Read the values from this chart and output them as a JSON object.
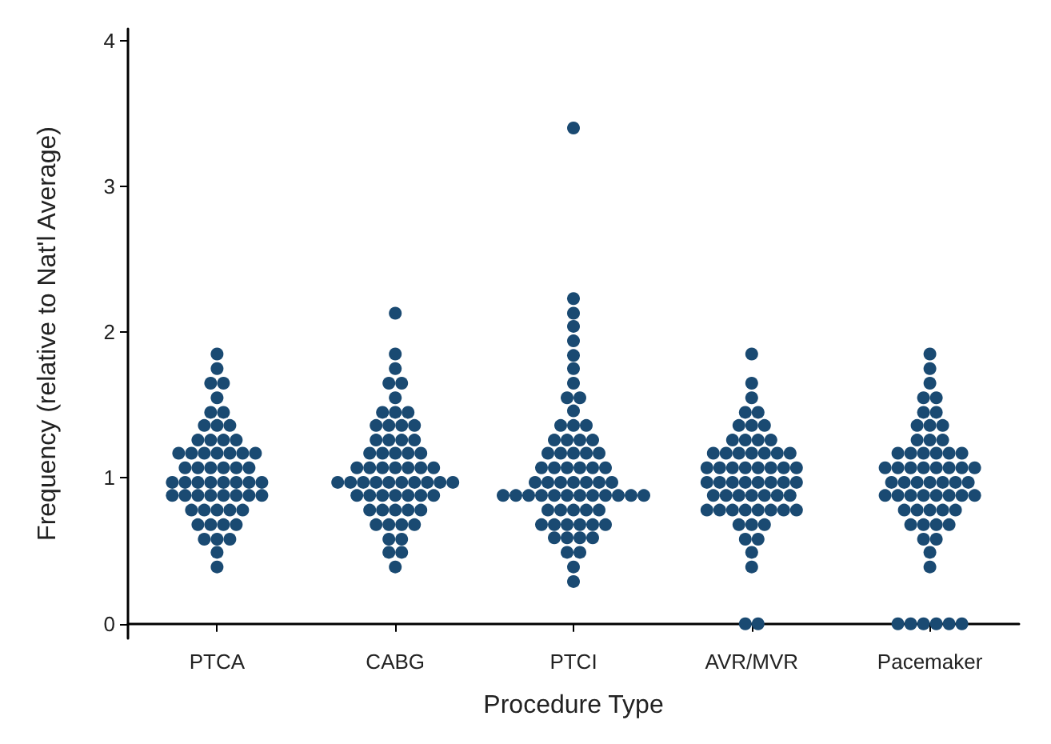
{
  "chart_data": {
    "type": "scatter",
    "xlabel": "Procedure Type",
    "ylabel": "Frequency (relative to Nat'l Average)",
    "categories": [
      "PTCA",
      "CABG",
      "PTCI",
      "AVR/MVR",
      "Pacemaker"
    ],
    "ylim": [
      -0.1,
      4.08
    ],
    "yticks": [
      0,
      1,
      2,
      3,
      4
    ],
    "grid": false,
    "marker": "circle",
    "series": [
      {
        "color": "#1a4a72",
        "x": [
          "PTCA",
          "PTCA",
          "PTCA",
          "PTCA",
          "PTCA",
          "PTCA",
          "PTCA",
          "PTCA",
          "PTCA",
          "PTCA",
          "PTCA",
          "PTCA",
          "PTCA",
          "PTCA",
          "PTCA",
          "PTCA",
          "PTCA",
          "PTCA",
          "PTCA",
          "PTCA",
          "PTCA",
          "PTCA",
          "PTCA",
          "PTCA",
          "PTCA",
          "PTCA",
          "PTCA",
          "PTCA",
          "PTCA",
          "PTCA",
          "PTCA",
          "PTCA",
          "PTCA",
          "PTCA",
          "PTCA",
          "PTCA",
          "PTCA",
          "PTCA",
          "PTCA",
          "PTCA",
          "PTCA",
          "PTCA",
          "PTCA",
          "PTCA",
          "PTCA",
          "PTCA",
          "PTCA",
          "PTCA",
          "PTCA",
          "PTCA",
          "PTCA",
          "PTCA",
          "PTCA",
          "PTCA",
          "PTCA",
          "PTCA",
          "PTCA"
        ],
        "values": [
          1.85,
          1.75,
          1.65,
          1.65,
          1.55,
          1.45,
          1.45,
          1.36,
          1.36,
          1.36,
          1.26,
          1.26,
          1.26,
          1.26,
          1.17,
          1.17,
          1.17,
          1.17,
          1.17,
          1.17,
          1.17,
          1.07,
          1.07,
          1.07,
          1.07,
          1.07,
          1.07,
          0.97,
          0.97,
          0.97,
          0.97,
          0.97,
          0.97,
          0.97,
          0.97,
          0.88,
          0.88,
          0.88,
          0.88,
          0.88,
          0.88,
          0.88,
          0.88,
          0.78,
          0.78,
          0.78,
          0.78,
          0.78,
          0.68,
          0.68,
          0.68,
          0.68,
          0.58,
          0.58,
          0.58,
          0.49,
          0.39
        ]
      },
      {
        "color": "#1a4a72",
        "x": [
          "CABG",
          "CABG",
          "CABG",
          "CABG",
          "CABG",
          "CABG",
          "CABG",
          "CABG",
          "CABG",
          "CABG",
          "CABG",
          "CABG",
          "CABG",
          "CABG",
          "CABG",
          "CABG",
          "CABG",
          "CABG",
          "CABG",
          "CABG",
          "CABG",
          "CABG",
          "CABG",
          "CABG",
          "CABG",
          "CABG",
          "CABG",
          "CABG",
          "CABG",
          "CABG",
          "CABG",
          "CABG",
          "CABG",
          "CABG",
          "CABG",
          "CABG",
          "CABG",
          "CABG",
          "CABG",
          "CABG",
          "CABG",
          "CABG",
          "CABG",
          "CABG",
          "CABG",
          "CABG",
          "CABG",
          "CABG",
          "CABG",
          "CABG",
          "CABG",
          "CABG",
          "CABG",
          "CABG",
          "CABG",
          "CABG",
          "CABG",
          "CABG",
          "CABG",
          "CABG"
        ],
        "values": [
          2.13,
          1.85,
          1.75,
          1.65,
          1.65,
          1.55,
          1.45,
          1.45,
          1.45,
          1.36,
          1.36,
          1.36,
          1.36,
          1.26,
          1.26,
          1.26,
          1.26,
          1.17,
          1.17,
          1.17,
          1.17,
          1.17,
          1.07,
          1.07,
          1.07,
          1.07,
          1.07,
          1.07,
          1.07,
          0.97,
          0.97,
          0.97,
          0.97,
          0.97,
          0.97,
          0.97,
          0.97,
          0.97,
          0.97,
          0.88,
          0.88,
          0.88,
          0.88,
          0.88,
          0.88,
          0.88,
          0.78,
          0.78,
          0.78,
          0.78,
          0.78,
          0.68,
          0.68,
          0.68,
          0.68,
          0.58,
          0.58,
          0.49,
          0.49,
          0.39
        ]
      },
      {
        "color": "#1a4a72",
        "x": [
          "PTCI",
          "PTCI",
          "PTCI",
          "PTCI",
          "PTCI",
          "PTCI",
          "PTCI",
          "PTCI",
          "PTCI",
          "PTCI",
          "PTCI",
          "PTCI",
          "PTCI",
          "PTCI",
          "PTCI",
          "PTCI",
          "PTCI",
          "PTCI",
          "PTCI",
          "PTCI",
          "PTCI",
          "PTCI",
          "PTCI",
          "PTCI",
          "PTCI",
          "PTCI",
          "PTCI",
          "PTCI",
          "PTCI",
          "PTCI",
          "PTCI",
          "PTCI",
          "PTCI",
          "PTCI",
          "PTCI",
          "PTCI",
          "PTCI",
          "PTCI",
          "PTCI",
          "PTCI",
          "PTCI",
          "PTCI",
          "PTCI",
          "PTCI",
          "PTCI",
          "PTCI",
          "PTCI",
          "PTCI",
          "PTCI",
          "PTCI",
          "PTCI",
          "PTCI",
          "PTCI",
          "PTCI",
          "PTCI",
          "PTCI",
          "PTCI",
          "PTCI",
          "PTCI",
          "PTCI",
          "PTCI",
          "PTCI",
          "PTCI",
          "PTCI",
          "PTCI",
          "PTCI",
          "PTCI"
        ],
        "values": [
          3.4,
          2.23,
          2.13,
          2.04,
          1.94,
          1.84,
          1.75,
          1.65,
          1.55,
          1.55,
          1.46,
          1.36,
          1.36,
          1.36,
          1.26,
          1.26,
          1.26,
          1.26,
          1.17,
          1.17,
          1.17,
          1.17,
          1.17,
          1.07,
          1.07,
          1.07,
          1.07,
          1.07,
          1.07,
          0.97,
          0.97,
          0.97,
          0.97,
          0.97,
          0.97,
          0.97,
          0.88,
          0.88,
          0.88,
          0.88,
          0.88,
          0.88,
          0.88,
          0.88,
          0.88,
          0.88,
          0.88,
          0.88,
          0.78,
          0.78,
          0.78,
          0.78,
          0.78,
          0.68,
          0.68,
          0.68,
          0.68,
          0.68,
          0.68,
          0.59,
          0.59,
          0.59,
          0.59,
          0.49,
          0.49,
          0.39,
          0.29
        ]
      },
      {
        "color": "#1a4a72",
        "x": [
          "AVR/MVR",
          "AVR/MVR",
          "AVR/MVR",
          "AVR/MVR",
          "AVR/MVR",
          "AVR/MVR",
          "AVR/MVR",
          "AVR/MVR",
          "AVR/MVR",
          "AVR/MVR",
          "AVR/MVR",
          "AVR/MVR",
          "AVR/MVR",
          "AVR/MVR",
          "AVR/MVR",
          "AVR/MVR",
          "AVR/MVR",
          "AVR/MVR",
          "AVR/MVR",
          "AVR/MVR",
          "AVR/MVR",
          "AVR/MVR",
          "AVR/MVR",
          "AVR/MVR",
          "AVR/MVR",
          "AVR/MVR",
          "AVR/MVR",
          "AVR/MVR",
          "AVR/MVR",
          "AVR/MVR",
          "AVR/MVR",
          "AVR/MVR",
          "AVR/MVR",
          "AVR/MVR",
          "AVR/MVR",
          "AVR/MVR",
          "AVR/MVR",
          "AVR/MVR",
          "AVR/MVR",
          "AVR/MVR",
          "AVR/MVR",
          "AVR/MVR",
          "AVR/MVR",
          "AVR/MVR",
          "AVR/MVR",
          "AVR/MVR",
          "AVR/MVR",
          "AVR/MVR",
          "AVR/MVR",
          "AVR/MVR",
          "AVR/MVR",
          "AVR/MVR",
          "AVR/MVR",
          "AVR/MVR",
          "AVR/MVR",
          "AVR/MVR",
          "AVR/MVR",
          "AVR/MVR",
          "AVR/MVR"
        ],
        "values": [
          1.85,
          1.65,
          1.55,
          1.45,
          1.45,
          1.36,
          1.36,
          1.36,
          1.26,
          1.26,
          1.26,
          1.26,
          1.17,
          1.17,
          1.17,
          1.17,
          1.17,
          1.17,
          1.17,
          1.07,
          1.07,
          1.07,
          1.07,
          1.07,
          1.07,
          1.07,
          1.07,
          0.97,
          0.97,
          0.97,
          0.97,
          0.97,
          0.97,
          0.97,
          0.97,
          0.88,
          0.88,
          0.88,
          0.88,
          0.88,
          0.88,
          0.88,
          0.78,
          0.78,
          0.78,
          0.78,
          0.78,
          0.78,
          0.78,
          0.78,
          0.68,
          0.68,
          0.68,
          0.58,
          0.58,
          0.49,
          0.39,
          0,
          0
        ]
      },
      {
        "color": "#1a4a72",
        "x": [
          "Pacemaker",
          "Pacemaker",
          "Pacemaker",
          "Pacemaker",
          "Pacemaker",
          "Pacemaker",
          "Pacemaker",
          "Pacemaker",
          "Pacemaker",
          "Pacemaker",
          "Pacemaker",
          "Pacemaker",
          "Pacemaker",
          "Pacemaker",
          "Pacemaker",
          "Pacemaker",
          "Pacemaker",
          "Pacemaker",
          "Pacemaker",
          "Pacemaker",
          "Pacemaker",
          "Pacemaker",
          "Pacemaker",
          "Pacemaker",
          "Pacemaker",
          "Pacemaker",
          "Pacemaker",
          "Pacemaker",
          "Pacemaker",
          "Pacemaker",
          "Pacemaker",
          "Pacemaker",
          "Pacemaker",
          "Pacemaker",
          "Pacemaker",
          "Pacemaker",
          "Pacemaker",
          "Pacemaker",
          "Pacemaker",
          "Pacemaker",
          "Pacemaker",
          "Pacemaker",
          "Pacemaker",
          "Pacemaker",
          "Pacemaker",
          "Pacemaker",
          "Pacemaker",
          "Pacemaker",
          "Pacemaker",
          "Pacemaker",
          "Pacemaker",
          "Pacemaker",
          "Pacemaker",
          "Pacemaker",
          "Pacemaker",
          "Pacemaker",
          "Pacemaker",
          "Pacemaker",
          "Pacemaker",
          "Pacemaker",
          "Pacemaker"
        ],
        "values": [
          1.85,
          1.75,
          1.65,
          1.55,
          1.55,
          1.45,
          1.45,
          1.36,
          1.36,
          1.36,
          1.26,
          1.26,
          1.26,
          1.17,
          1.17,
          1.17,
          1.17,
          1.17,
          1.17,
          1.07,
          1.07,
          1.07,
          1.07,
          1.07,
          1.07,
          1.07,
          1.07,
          0.97,
          0.97,
          0.97,
          0.97,
          0.97,
          0.97,
          0.97,
          0.88,
          0.88,
          0.88,
          0.88,
          0.88,
          0.88,
          0.88,
          0.88,
          0.78,
          0.78,
          0.78,
          0.78,
          0.78,
          0.68,
          0.68,
          0.68,
          0.68,
          0.58,
          0.58,
          0.49,
          0.39,
          0,
          0,
          0,
          0,
          0,
          0
        ]
      }
    ]
  }
}
